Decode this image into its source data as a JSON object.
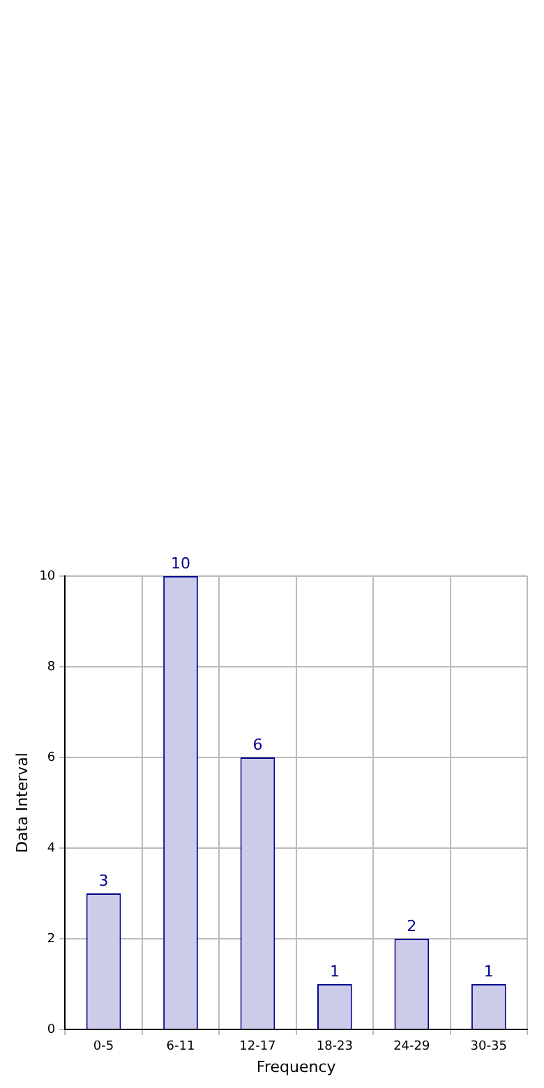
{
  "chart_data": {
    "type": "bar",
    "xlabel": "Frequency",
    "ylabel": "Data Interval",
    "categories": [
      "0-5",
      "6-11",
      "12-17",
      "18-23",
      "24-29",
      "30-35"
    ],
    "values": [
      3,
      10,
      6,
      1,
      2,
      1
    ],
    "color": "#ccccea",
    "ylim": [
      0,
      10
    ],
    "yticks": [
      0,
      2,
      4,
      6,
      8,
      10
    ],
    "grid": true,
    "data_labels": true
  }
}
